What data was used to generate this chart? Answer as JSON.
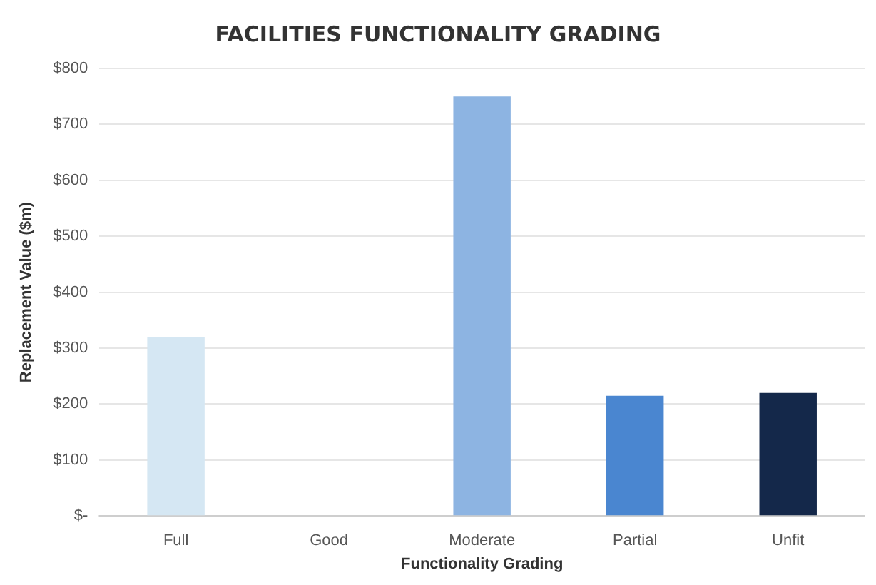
{
  "chart_data": {
    "type": "bar",
    "title": "FACILITIES FUNCTIONALITY GRADING",
    "xlabel": "Functionality Grading",
    "ylabel": "Replacement Value ($m)",
    "categories": [
      "Full",
      "Good",
      "Moderate",
      "Partial",
      "Unfit"
    ],
    "values": [
      320,
      0,
      750,
      215,
      220
    ],
    "colors": [
      "#d5e7f3",
      "#a9c6e8",
      "#8db4e2",
      "#4a86d0",
      "#14284a"
    ],
    "ylim": [
      0,
      800
    ],
    "yticks": [
      {
        "value": 0,
        "label": "$-"
      },
      {
        "value": 100,
        "label": "$100"
      },
      {
        "value": 200,
        "label": "$200"
      },
      {
        "value": 300,
        "label": "$300"
      },
      {
        "value": 400,
        "label": "$400"
      },
      {
        "value": 500,
        "label": "$500"
      },
      {
        "value": 600,
        "label": "$600"
      },
      {
        "value": 700,
        "label": "$700"
      },
      {
        "value": 800,
        "label": "$800"
      }
    ],
    "grid": "y"
  }
}
